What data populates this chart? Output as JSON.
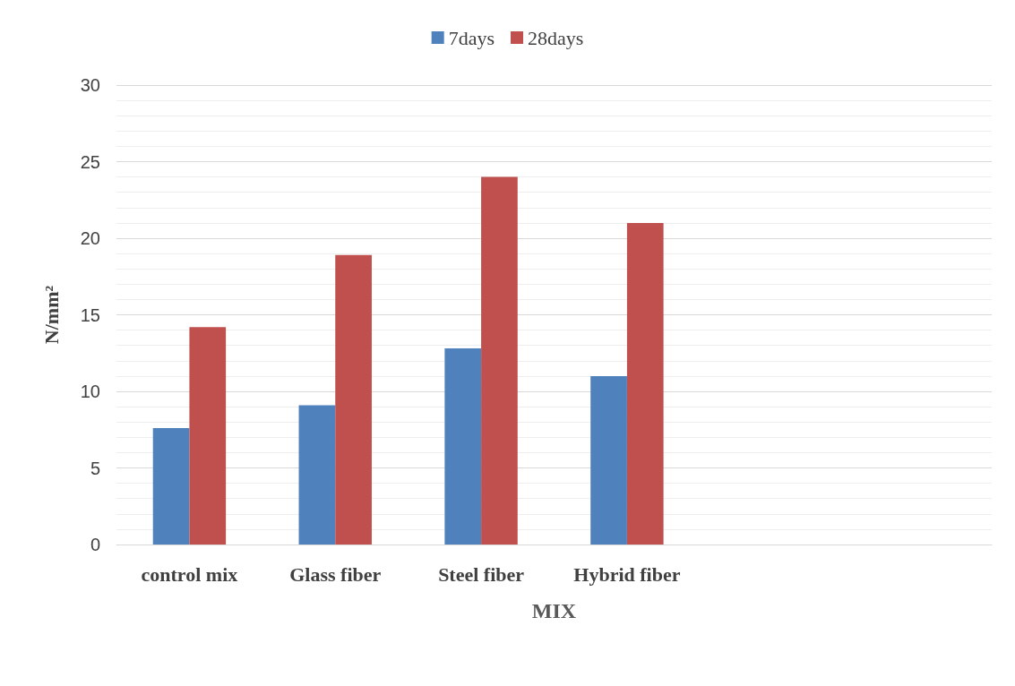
{
  "chart_data": {
    "type": "bar",
    "xlabel": "MIX",
    "ylabel": "N/mm²",
    "categories": [
      "control mix",
      "Glass fiber",
      "Steel fiber",
      "Hybrid fiber",
      null,
      null
    ],
    "series": [
      {
        "name": "7days",
        "color": "#4f81bd",
        "values": [
          7.6,
          9.1,
          12.8,
          11.0,
          null,
          null
        ]
      },
      {
        "name": "28days",
        "color": "#c0504d",
        "values": [
          14.2,
          18.9,
          24.0,
          21.0,
          null,
          null
        ]
      }
    ],
    "ylim": [
      0,
      30
    ],
    "yticks": [
      0,
      {
        "value": 1,
        "label": null
      },
      {
        "value": 2,
        "label": null
      },
      {
        "value": 3,
        "label": null
      },
      {
        "value": 4,
        "label": null
      },
      5,
      {
        "value": 6,
        "label": null
      },
      {
        "value": 7,
        "label": null
      },
      {
        "value": 8,
        "label": null
      },
      {
        "value": 9,
        "label": null
      },
      10,
      {
        "value": 11,
        "label": null
      },
      {
        "value": 12,
        "label": null
      },
      {
        "value": 13,
        "label": null
      },
      {
        "value": 14,
        "label": null
      },
      15,
      {
        "value": 16,
        "label": null
      },
      {
        "value": 17,
        "label": null
      },
      {
        "value": 18,
        "label": null
      },
      {
        "value": 19,
        "label": null
      },
      20,
      {
        "value": 21,
        "label": null
      },
      {
        "value": 22,
        "label": null
      },
      {
        "value": 23,
        "label": null
      },
      {
        "value": 24,
        "label": null
      },
      25,
      {
        "value": 26,
        "label": null
      },
      {
        "value": 27,
        "label": null
      },
      {
        "value": 28,
        "label": null
      },
      {
        "value": 29,
        "label": null
      },
      30
    ],
    "grid": "y",
    "legend": "top"
  }
}
